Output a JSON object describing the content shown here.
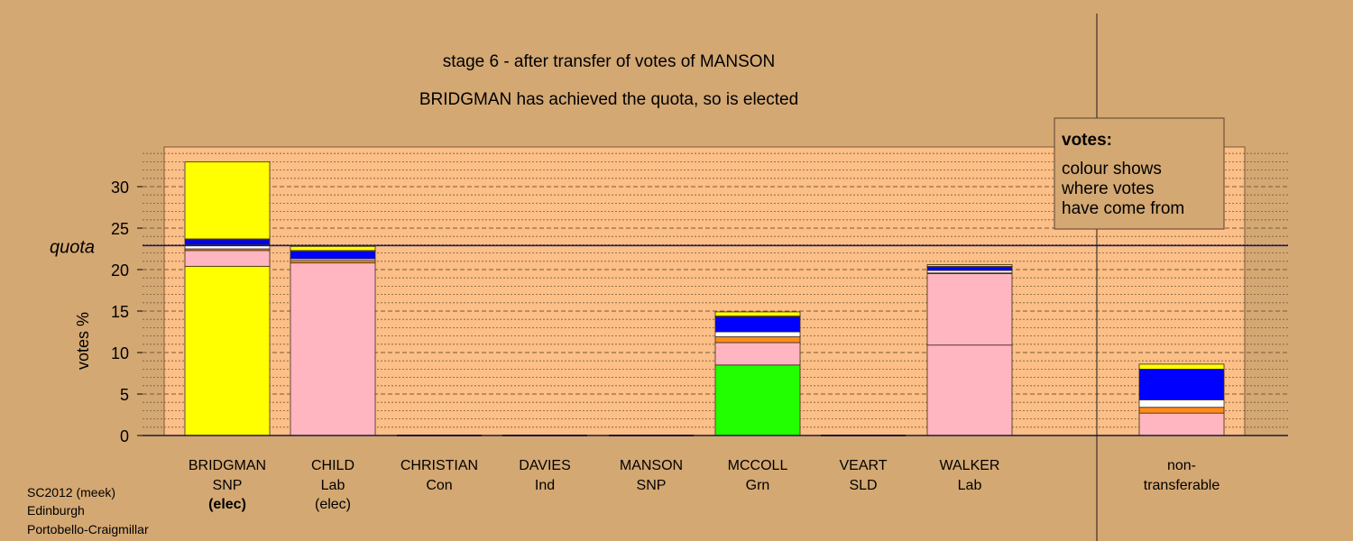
{
  "titles": {
    "line1": "stage 6 - after transfer of votes of MANSON",
    "line2": "BRIDGMAN has achieved the quota, so is elected"
  },
  "legend": {
    "title": "votes:",
    "lines": [
      "colour shows",
      "where votes",
      "have come from"
    ]
  },
  "footer": [
    "SC2012 (meek)",
    "Edinburgh",
    "Portobello-Craigmillar"
  ],
  "colors": {
    "background": "#d4a873",
    "plot_area": "#fbbf87",
    "quota_line": "#1a1a6e"
  },
  "chart_data": {
    "type": "bar",
    "stacked": true,
    "ylabel": "votes %",
    "yticks": [
      0,
      5,
      10,
      15,
      20,
      25,
      30
    ],
    "ylim": [
      0,
      34
    ],
    "grid": true,
    "quota": {
      "label": "quota",
      "value": 22.9
    },
    "categories": [
      {
        "name": "BRIDGMAN",
        "party": "SNP",
        "note": "(elec)",
        "note_bold": true
      },
      {
        "name": "CHILD",
        "party": "Lab",
        "note": "(elec)",
        "note_bold": false
      },
      {
        "name": "CHRISTIAN",
        "party": "Con",
        "note": ""
      },
      {
        "name": "DAVIES",
        "party": "Ind",
        "note": ""
      },
      {
        "name": "MANSON",
        "party": "SNP",
        "note": ""
      },
      {
        "name": "MCCOLL",
        "party": "Grn",
        "note": ""
      },
      {
        "name": "VEART",
        "party": "SLD",
        "note": ""
      },
      {
        "name": "WALKER",
        "party": "Lab",
        "note": ""
      }
    ],
    "nontransferable": {
      "line1": "non-",
      "line2": "transferable"
    },
    "stacks": [
      [
        {
          "color": "#ffff00",
          "value": 20.4
        },
        {
          "color": "#ffb6c1",
          "value": 1.9
        },
        {
          "color": "#ff8c1a",
          "value": 0.2
        },
        {
          "color": "#ffffff",
          "value": 0.5
        },
        {
          "color": "#0000ff",
          "value": 0.6
        },
        {
          "color": "#ffffff",
          "value": 0.1
        },
        {
          "color": "#ffff00",
          "value": 9.3
        }
      ],
      [
        {
          "color": "#ffb6c1",
          "value": 20.8
        },
        {
          "color": "#ff8c1a",
          "value": 0.3
        },
        {
          "color": "#ffffff",
          "value": 0.2
        },
        {
          "color": "#0000ff",
          "value": 0.9
        },
        {
          "color": "#ffffff",
          "value": 0.1
        },
        {
          "color": "#ffff00",
          "value": 0.5
        }
      ],
      [],
      [],
      [],
      [
        {
          "color": "#22ff00",
          "value": 8.5
        },
        {
          "color": "#ffb6c1",
          "value": 2.7
        },
        {
          "color": "#ff8c1a",
          "value": 0.7
        },
        {
          "color": "#ffffff",
          "value": 0.6
        },
        {
          "color": "#0000ff",
          "value": 1.8
        },
        {
          "color": "#ffffff",
          "value": 0.1
        },
        {
          "color": "#ffff00",
          "value": 0.5
        }
      ],
      [],
      [
        {
          "color": "#ffb6c1",
          "value": 10.9
        },
        {
          "color": "#ffb6c1",
          "value": 8.6
        },
        {
          "color": "#ff8c1a",
          "value": 0.1
        },
        {
          "color": "#ffffff",
          "value": 0.3
        },
        {
          "color": "#0000ff",
          "value": 0.4
        },
        {
          "color": "#ffffff",
          "value": 0.1
        },
        {
          "color": "#ffff00",
          "value": 0.2
        }
      ]
    ],
    "nontransferable_stack": [
      {
        "color": "#ffb6c1",
        "value": 2.7
      },
      {
        "color": "#ff8c1a",
        "value": 0.7
      },
      {
        "color": "#ffffff",
        "value": 0.9
      },
      {
        "color": "#0000ff",
        "value": 3.7
      },
      {
        "color": "#ffff00",
        "value": 0.6
      }
    ]
  }
}
